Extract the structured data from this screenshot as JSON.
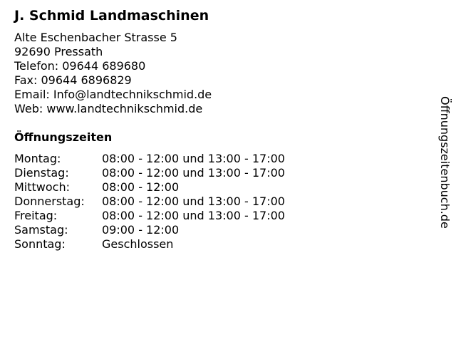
{
  "business": {
    "name": "J. Schmid Landmaschinen",
    "street": "Alte Eschenbacher Strasse 5",
    "city": "92690 Pressath",
    "phone": "Telefon: 09644 689680",
    "fax": "Fax: 09644 6896829",
    "email": "Email: Info@landtechnikschmid.de",
    "web": "Web: www.landtechnikschmid.de"
  },
  "hours": {
    "title": "Öffnungszeiten",
    "rows": [
      {
        "day": "Montag:",
        "time": "08:00 - 12:00 und 13:00 - 17:00"
      },
      {
        "day": "Dienstag:",
        "time": "08:00 - 12:00 und 13:00 - 17:00"
      },
      {
        "day": "Mittwoch:",
        "time": "08:00 - 12:00"
      },
      {
        "day": "Donnerstag:",
        "time": "08:00 - 12:00 und 13:00 - 17:00"
      },
      {
        "day": "Freitag:",
        "time": "08:00 - 12:00 und 13:00 - 17:00"
      },
      {
        "day": "Samstag:",
        "time": "09:00 - 12:00"
      },
      {
        "day": "Sonntag:",
        "time": "Geschlossen"
      }
    ]
  },
  "watermark": "Öffnungszeitenbuch.de"
}
